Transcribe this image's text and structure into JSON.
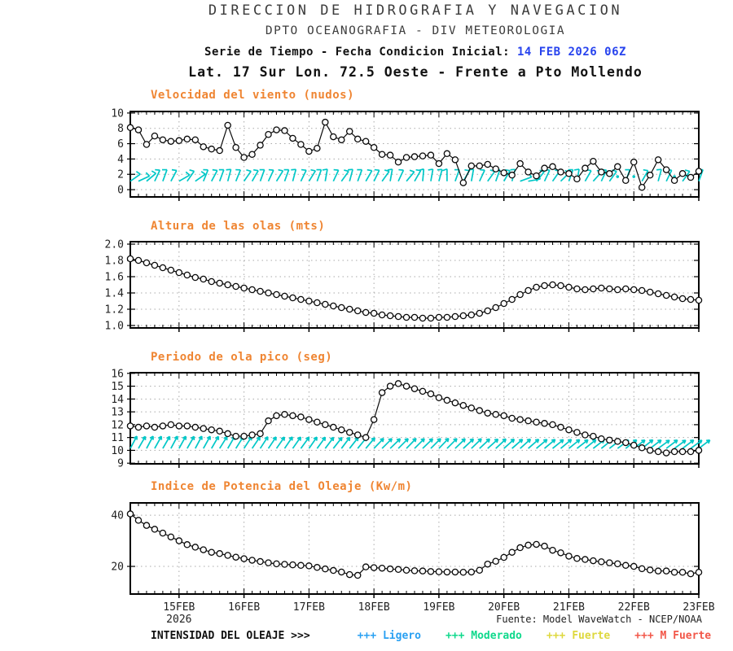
{
  "header": {
    "line1": "DIRECCION DE HIDROGRAFIA Y NAVEGACION",
    "line2": "DPTO OCEANOGRAFIA - DIV METEOROLOGIA",
    "line3_label": "Serie de Tiempo - Fecha Condicion Inicial:",
    "line3_date": "14 FEB 2026 06Z",
    "line4": "Lat. 17 Sur  Lon. 72.5 Oeste - Frente a Pto Mollendo"
  },
  "footer": {
    "source": "Fuente: Model WaveWatch - NCEP/NOAA",
    "legend_label": "INTENSIDAD DEL OLEAJE >>>",
    "legend_items": [
      {
        "marker": "+++",
        "label": "Ligero",
        "color": "#29a0f2"
      },
      {
        "marker": "+++",
        "label": "Moderado",
        "color": "#0fd98c"
      },
      {
        "marker": "+++",
        "label": "Fuerte",
        "color": "#ded83e"
      },
      {
        "marker": "+++",
        "label": "M Fuerte",
        "color": "#f25749"
      }
    ]
  },
  "colors": {
    "title_orange": "#ef8532",
    "date_blue": "#2743ee",
    "barb_cyan": "#00c7c7",
    "grid_gray": "#a9a9a9",
    "line_black": "#0a0a0a"
  },
  "time": {
    "initial": "14 FEB 2026 06Z",
    "step_hours": 3,
    "n_points": 71,
    "day_labels": [
      "15FEB",
      "16FEB",
      "17FEB",
      "18FEB",
      "19FEB",
      "20FEB",
      "21FEB",
      "22FEB",
      "23FEB"
    ],
    "day_indices": [
      6,
      14,
      22,
      30,
      38,
      46,
      54,
      62,
      70
    ],
    "year_label": "2026"
  },
  "chart_data": [
    {
      "type": "line",
      "title": "Velocidad del viento (nudos)",
      "ylabel": "nudos",
      "ylim": [
        -0.95,
        10.2
      ],
      "yticks": [
        {
          "v": 0,
          "t": "0"
        },
        {
          "v": 2,
          "t": "2"
        },
        {
          "v": 4,
          "t": "4"
        },
        {
          "v": 6,
          "t": "6"
        },
        {
          "v": 8,
          "t": "8"
        },
        {
          "v": 10,
          "t": "10"
        }
      ],
      "values": [
        8.1,
        7.8,
        5.9,
        7.0,
        6.5,
        6.3,
        6.4,
        6.6,
        6.5,
        5.6,
        5.3,
        5.1,
        8.4,
        5.5,
        4.2,
        4.6,
        5.8,
        7.2,
        7.8,
        7.7,
        6.7,
        5.9,
        5.0,
        5.4,
        8.8,
        6.9,
        6.5,
        7.6,
        6.6,
        6.3,
        5.5,
        4.6,
        4.5,
        3.6,
        4.2,
        4.3,
        4.4,
        4.5,
        3.4,
        4.7,
        3.9,
        0.9,
        3.1,
        3.1,
        3.3,
        2.7,
        2.2,
        1.9,
        3.4,
        2.3,
        1.8,
        2.8,
        3.0,
        2.3,
        2.1,
        1.4,
        2.8,
        3.7,
        2.3,
        2.1,
        3.0,
        1.2,
        3.6,
        0.3,
        1.9,
        3.9,
        2.6,
        1.2,
        2.1,
        1.6,
        2.4
      ],
      "annotations": {
        "kind": "wind-barb",
        "base": 1.1,
        "len": 15,
        "dot_level": 1.7,
        "angles": [
          55,
          65,
          50,
          25,
          20,
          28,
          60,
          35,
          55,
          22,
          28,
          20,
          15,
          22,
          35,
          30,
          20,
          25,
          32,
          20,
          15,
          26,
          32,
          20,
          10,
          25,
          36,
          15,
          20,
          30,
          26,
          36,
          10,
          25,
          40,
          30,
          5,
          10,
          15,
          0,
          20,
          30,
          10,
          25,
          36,
          20,
          30,
          15,
          70,
          80,
          40,
          25,
          35,
          45,
          20,
          10,
          30,
          42,
          25,
          36,
          null,
          20,
          null,
          30,
          null,
          15,
          26,
          null,
          36,
          null,
          20
        ]
      }
    },
    {
      "type": "line",
      "title": "Altura de las olas (mts)",
      "ylabel": "mts",
      "ylim": [
        0.97,
        2.03
      ],
      "yticks": [
        {
          "v": 1.0,
          "t": "1.0"
        },
        {
          "v": 1.2,
          "t": "1.2"
        },
        {
          "v": 1.4,
          "t": "1.4"
        },
        {
          "v": 1.6,
          "t": "1.6"
        },
        {
          "v": 1.8,
          "t": "1.8"
        },
        {
          "v": 2.0,
          "t": "2.0"
        }
      ],
      "values": [
        1.82,
        1.8,
        1.77,
        1.74,
        1.71,
        1.68,
        1.65,
        1.62,
        1.59,
        1.57,
        1.54,
        1.52,
        1.5,
        1.48,
        1.46,
        1.44,
        1.42,
        1.4,
        1.38,
        1.36,
        1.34,
        1.32,
        1.3,
        1.28,
        1.26,
        1.24,
        1.22,
        1.2,
        1.18,
        1.16,
        1.15,
        1.13,
        1.12,
        1.11,
        1.1,
        1.1,
        1.09,
        1.09,
        1.1,
        1.1,
        1.11,
        1.12,
        1.13,
        1.15,
        1.18,
        1.22,
        1.27,
        1.32,
        1.38,
        1.43,
        1.47,
        1.49,
        1.5,
        1.49,
        1.47,
        1.45,
        1.44,
        1.45,
        1.46,
        1.45,
        1.44,
        1.45,
        1.44,
        1.43,
        1.41,
        1.39,
        1.37,
        1.35,
        1.33,
        1.32,
        1.31
      ],
      "annotations": null
    },
    {
      "type": "line",
      "title": "Periodo de ola pico (seg)",
      "ylabel": "seg",
      "ylim": [
        8.95,
        16.05
      ],
      "yticks": [
        {
          "v": 9,
          "t": "9"
        },
        {
          "v": 10,
          "t": "10"
        },
        {
          "v": 11,
          "t": "11"
        },
        {
          "v": 12,
          "t": "12"
        },
        {
          "v": 13,
          "t": "13"
        },
        {
          "v": 14,
          "t": "14"
        },
        {
          "v": 15,
          "t": "15"
        },
        {
          "v": 16,
          "t": "16"
        }
      ],
      "values": [
        11.9,
        11.8,
        11.9,
        11.8,
        11.9,
        12.0,
        11.9,
        11.9,
        11.8,
        11.7,
        11.6,
        11.5,
        11.3,
        11.1,
        11.1,
        11.2,
        11.3,
        12.3,
        12.7,
        12.8,
        12.7,
        12.6,
        12.4,
        12.2,
        12.0,
        11.8,
        11.6,
        11.4,
        11.2,
        11.0,
        12.4,
        14.5,
        15.0,
        15.2,
        15.0,
        14.8,
        14.6,
        14.4,
        14.1,
        13.9,
        13.7,
        13.5,
        13.3,
        13.1,
        12.9,
        12.8,
        12.7,
        12.5,
        12.4,
        12.3,
        12.2,
        12.1,
        12.0,
        11.8,
        11.6,
        11.4,
        11.2,
        11.1,
        10.9,
        10.8,
        10.7,
        10.6,
        10.4,
        10.2,
        10.0,
        9.9,
        9.8,
        9.9,
        9.9,
        9.9,
        10.0
      ],
      "annotations": {
        "kind": "wave-arrow",
        "base": 10.15,
        "len": 17,
        "dot_level": 10.5,
        "angles": [
          28,
          30,
          28,
          29,
          30,
          28,
          29,
          30,
          28,
          29,
          30,
          32,
          30,
          32,
          33,
          34,
          33,
          34,
          35,
          34,
          35,
          36,
          35,
          36,
          37,
          38,
          37,
          38,
          39,
          40,
          44,
          45,
          46,
          45,
          44,
          45,
          46,
          45,
          44,
          45,
          46,
          47,
          46,
          47,
          48,
          47,
          48,
          49,
          48,
          49,
          50,
          50,
          51,
          50,
          51,
          52,
          51,
          52,
          51,
          52,
          53,
          52,
          53,
          52,
          53,
          54,
          53,
          54,
          53,
          54,
          53
        ]
      }
    },
    {
      "type": "line",
      "title": "Indice de Potencia del Oleaje (Kw/m)",
      "ylabel": "Kw/m",
      "ylim": [
        9.2,
        44.8
      ],
      "yticks": [
        {
          "v": 20,
          "t": "20"
        },
        {
          "v": 40,
          "t": "40"
        }
      ],
      "values": [
        40.5,
        38.0,
        36.0,
        34.5,
        33.0,
        31.5,
        30.0,
        28.5,
        27.5,
        26.5,
        25.5,
        25.0,
        24.3,
        23.6,
        23.0,
        22.4,
        21.9,
        21.4,
        21.0,
        20.8,
        20.6,
        20.4,
        20.2,
        19.6,
        19.0,
        18.4,
        17.8,
        16.8,
        16.5,
        19.8,
        19.5,
        19.3,
        19.0,
        18.8,
        18.5,
        18.3,
        18.2,
        18.0,
        17.9,
        17.8,
        17.8,
        17.7,
        17.8,
        18.5,
        20.9,
        22.0,
        23.5,
        25.5,
        27.3,
        28.3,
        28.6,
        27.9,
        26.3,
        25.3,
        24.0,
        23.1,
        22.7,
        22.2,
        21.8,
        21.4,
        21.0,
        20.4,
        20.0,
        19.1,
        18.6,
        18.2,
        18.2,
        17.7,
        17.7,
        17.1,
        17.7
      ],
      "annotations": null
    }
  ]
}
